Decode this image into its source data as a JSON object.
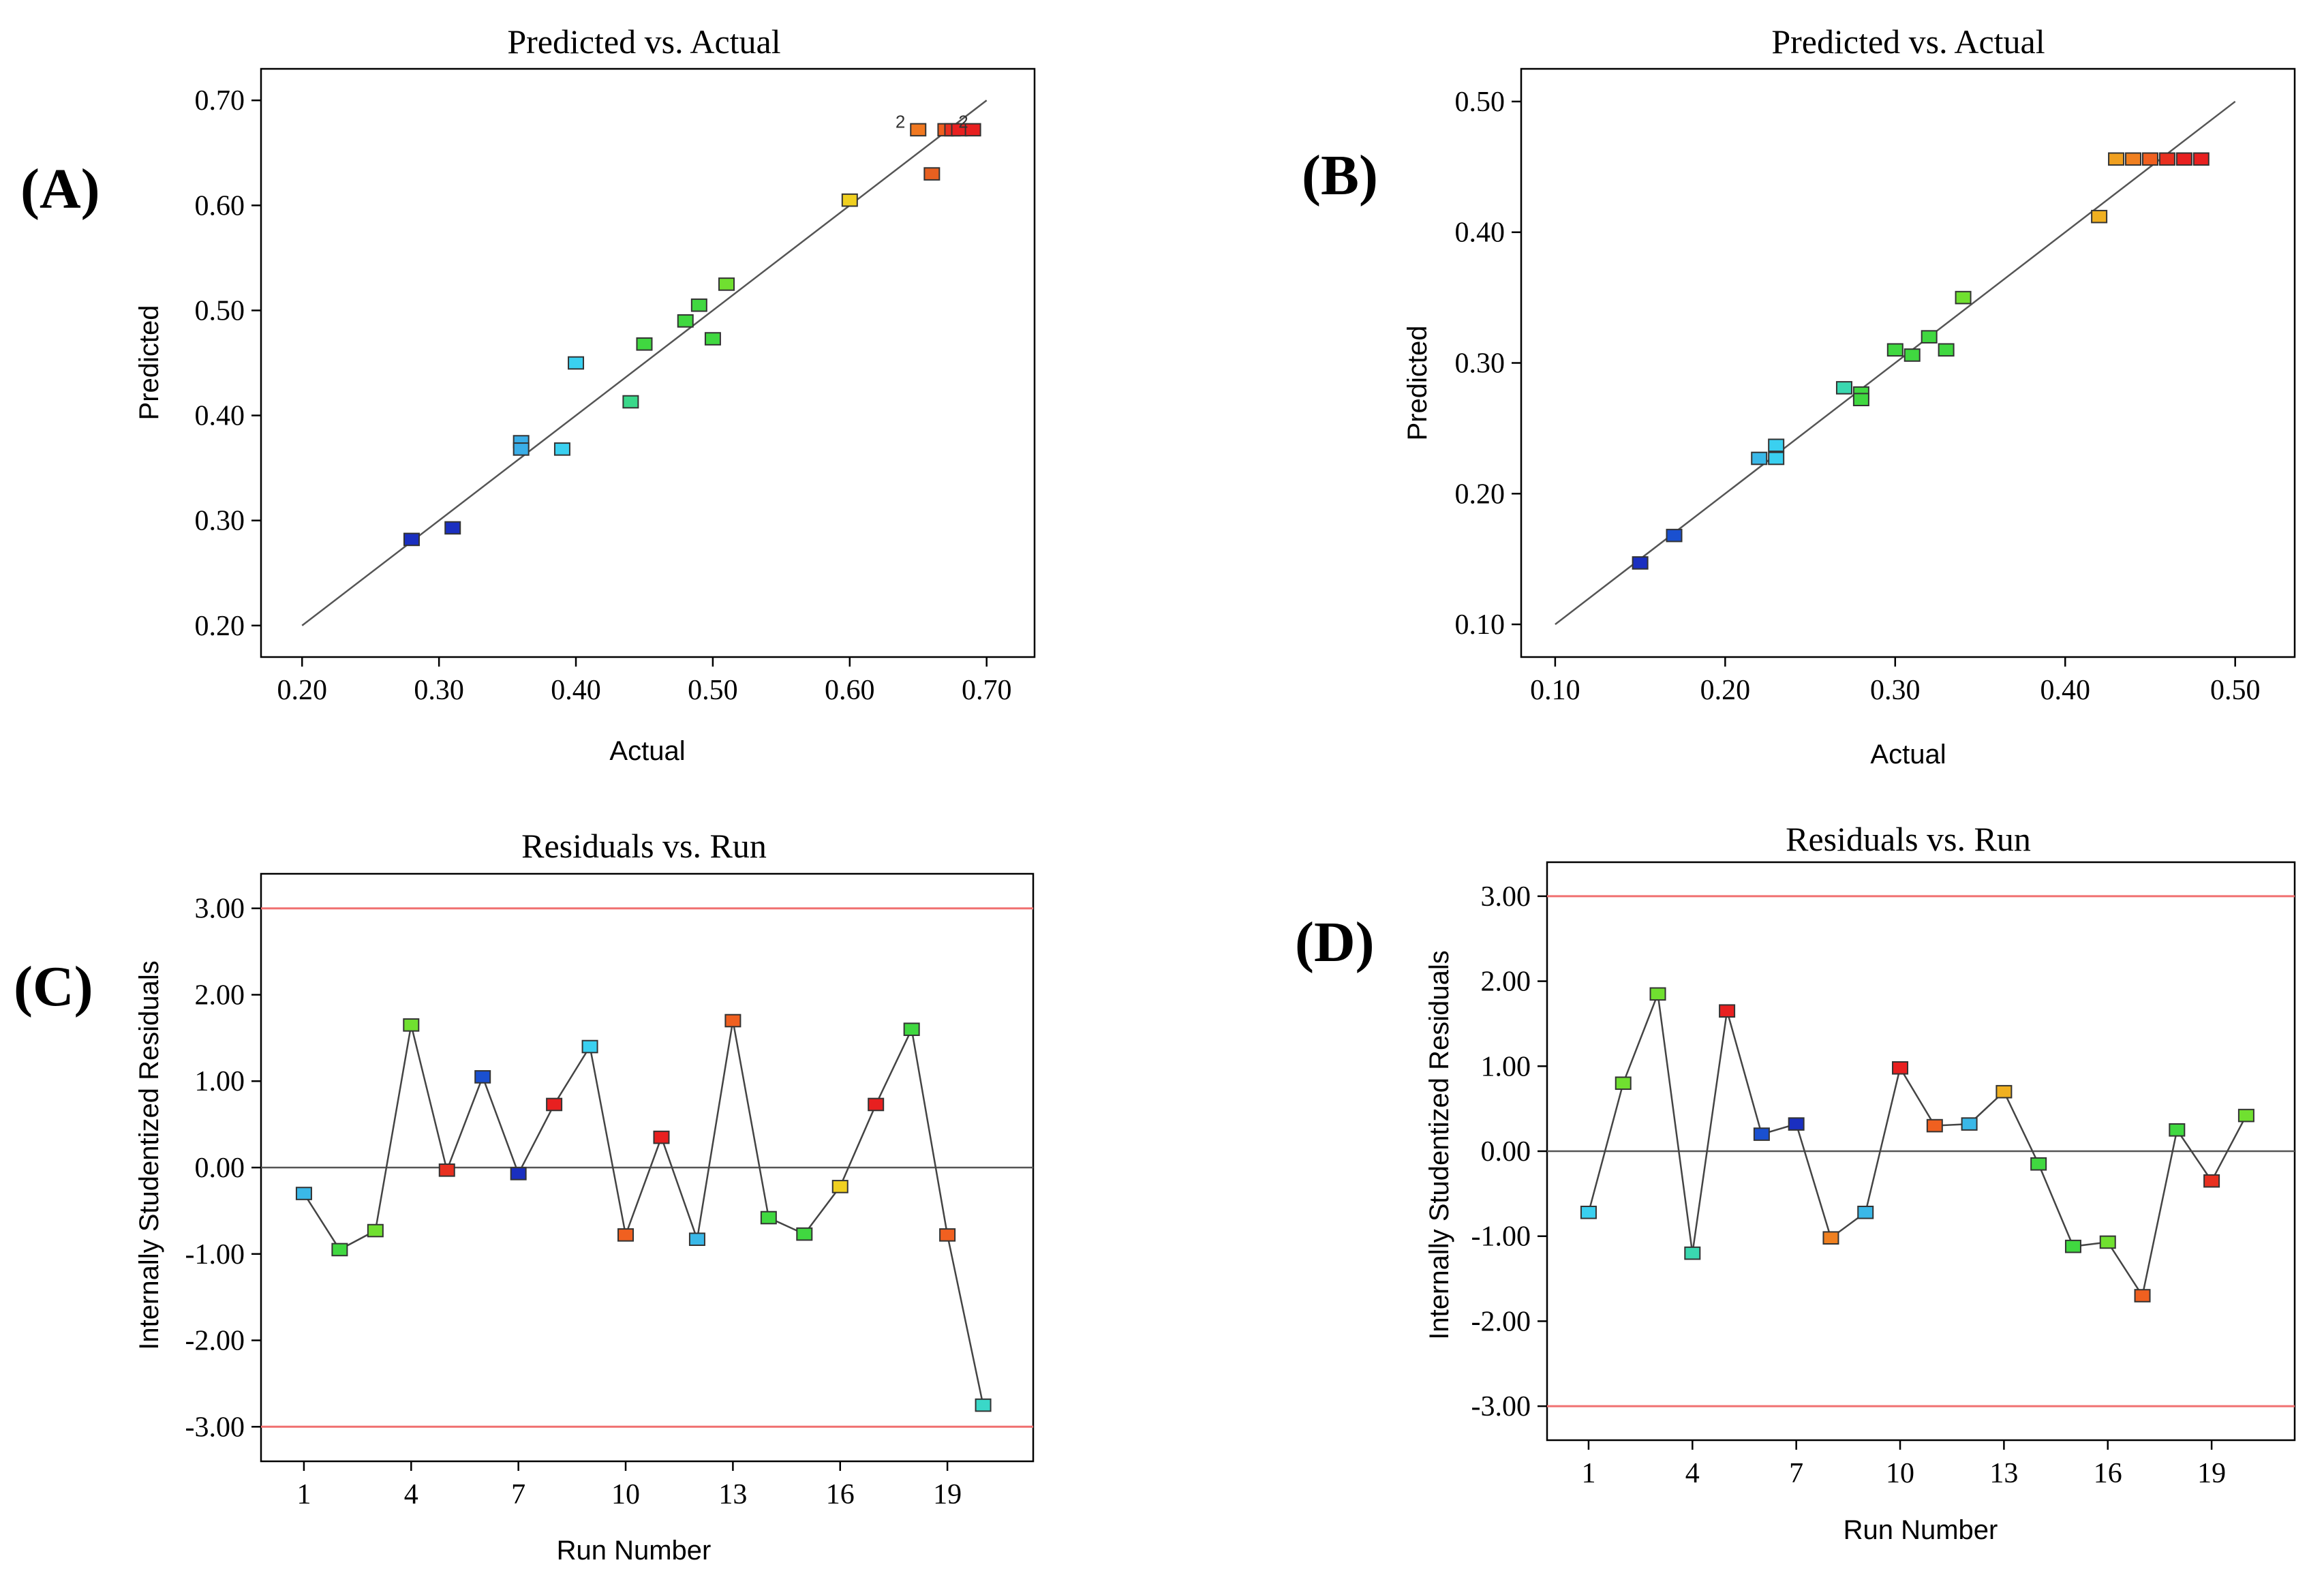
{
  "figure": {
    "panels": [
      {
        "panel_label": "(A)",
        "chart_data": {
          "type": "scatter",
          "title": "Predicted vs. Actual",
          "xlabel": "Actual",
          "ylabel": "Predicted",
          "xlim": [
            0.17,
            0.735
          ],
          "ylim": [
            0.17,
            0.73
          ],
          "xticks": [
            "0.20",
            "0.30",
            "0.40",
            "0.50",
            "0.60",
            "0.70"
          ],
          "yticks": [
            "0.20",
            "0.30",
            "0.40",
            "0.50",
            "0.60",
            "0.70"
          ],
          "xtick_values": [
            0.2,
            0.3,
            0.4,
            0.5,
            0.6,
            0.7
          ],
          "ytick_values": [
            0.2,
            0.3,
            0.4,
            0.5,
            0.6,
            0.7
          ],
          "diagonal": [
            0.2,
            0.7
          ],
          "points": [
            {
              "x": 0.28,
              "y": 0.282,
              "color": "#1a2fc0"
            },
            {
              "x": 0.31,
              "y": 0.293,
              "color": "#1a2fc0"
            },
            {
              "x": 0.36,
              "y": 0.375,
              "color": "#3aaee8"
            },
            {
              "x": 0.36,
              "y": 0.368,
              "color": "#3aaee8"
            },
            {
              "x": 0.39,
              "y": 0.368,
              "color": "#3ad0f0"
            },
            {
              "x": 0.4,
              "y": 0.45,
              "color": "#3ad0f0"
            },
            {
              "x": 0.44,
              "y": 0.413,
              "color": "#3ad88a"
            },
            {
              "x": 0.45,
              "y": 0.468,
              "color": "#40d840"
            },
            {
              "x": 0.48,
              "y": 0.49,
              "color": "#40d840"
            },
            {
              "x": 0.49,
              "y": 0.505,
              "color": "#40d840"
            },
            {
              "x": 0.5,
              "y": 0.473,
              "color": "#40d840"
            },
            {
              "x": 0.51,
              "y": 0.525,
              "color": "#70e030"
            },
            {
              "x": 0.6,
              "y": 0.605,
              "color": "#f0d020"
            },
            {
              "x": 0.65,
              "y": 0.672,
              "color": "#f07820"
            },
            {
              "x": 0.66,
              "y": 0.63,
              "color": "#e86020"
            },
            {
              "x": 0.67,
              "y": 0.672,
              "color": "#f06020"
            },
            {
              "x": 0.675,
              "y": 0.672,
              "color": "#e83020"
            },
            {
              "x": 0.68,
              "y": 0.672,
              "color": "#e82020"
            },
            {
              "x": 0.69,
              "y": 0.672,
              "color": "#e82020"
            }
          ],
          "annotations": [
            {
              "text": "2",
              "x": 0.637,
              "y": 0.674
            },
            {
              "text": "2",
              "x": 0.683,
              "y": 0.674
            }
          ]
        }
      },
      {
        "panel_label": "(B)",
        "chart_data": {
          "type": "scatter",
          "title": "Predicted vs. Actual",
          "xlabel": "Actual",
          "ylabel": "Predicted",
          "xlim": [
            0.08,
            0.535
          ],
          "ylim": [
            0.075,
            0.525
          ],
          "xticks": [
            "0.10",
            "0.20",
            "0.30",
            "0.40",
            "0.50"
          ],
          "yticks": [
            "0.10",
            "0.20",
            "0.30",
            "0.40",
            "0.50"
          ],
          "xtick_values": [
            0.1,
            0.2,
            0.3,
            0.4,
            0.5
          ],
          "ytick_values": [
            0.1,
            0.2,
            0.3,
            0.4,
            0.5
          ],
          "diagonal": [
            0.1,
            0.5
          ],
          "points": [
            {
              "x": 0.15,
              "y": 0.147,
              "color": "#1a2fc0"
            },
            {
              "x": 0.17,
              "y": 0.168,
              "color": "#1a50d0"
            },
            {
              "x": 0.22,
              "y": 0.227,
              "color": "#3ab8e8"
            },
            {
              "x": 0.23,
              "y": 0.227,
              "color": "#3ad0f0"
            },
            {
              "x": 0.23,
              "y": 0.237,
              "color": "#3ad0f0"
            },
            {
              "x": 0.27,
              "y": 0.281,
              "color": "#3ad8b0"
            },
            {
              "x": 0.28,
              "y": 0.277,
              "color": "#40d840"
            },
            {
              "x": 0.28,
              "y": 0.272,
              "color": "#40d840"
            },
            {
              "x": 0.3,
              "y": 0.31,
              "color": "#40d840"
            },
            {
              "x": 0.31,
              "y": 0.306,
              "color": "#40d840"
            },
            {
              "x": 0.32,
              "y": 0.32,
              "color": "#40d840"
            },
            {
              "x": 0.33,
              "y": 0.31,
              "color": "#40d840"
            },
            {
              "x": 0.34,
              "y": 0.35,
              "color": "#70e030"
            },
            {
              "x": 0.42,
              "y": 0.412,
              "color": "#f0b020"
            },
            {
              "x": 0.43,
              "y": 0.456,
              "color": "#f0a020"
            },
            {
              "x": 0.44,
              "y": 0.456,
              "color": "#f08020"
            },
            {
              "x": 0.45,
              "y": 0.456,
              "color": "#f06020"
            },
            {
              "x": 0.46,
              "y": 0.456,
              "color": "#e83020"
            },
            {
              "x": 0.47,
              "y": 0.456,
              "color": "#e82020"
            },
            {
              "x": 0.48,
              "y": 0.456,
              "color": "#e82020"
            }
          ],
          "annotations": []
        }
      },
      {
        "panel_label": "(C)",
        "chart_data": {
          "type": "line",
          "title": "Residuals vs. Run",
          "xlabel": "Run Number",
          "ylabel": "Internally Studentized Residuals",
          "xlim": [
            -0.2,
            21.4
          ],
          "ylim": [
            -3.4,
            3.4
          ],
          "xticks": [
            "1",
            "4",
            "7",
            "10",
            "13",
            "16",
            "19"
          ],
          "yticks": [
            "3.00",
            "2.00",
            "1.00",
            "0.00",
            "-1.00",
            "-2.00",
            "-3.00"
          ],
          "xtick_values": [
            1,
            4,
            7,
            10,
            13,
            16,
            19
          ],
          "ytick_values": [
            3,
            2,
            1,
            0,
            -1,
            -2,
            -3
          ],
          "limit_lines": [
            3.0,
            -3.0
          ],
          "zero_line": 0,
          "x": [
            1,
            2,
            3,
            4,
            5,
            6,
            7,
            8,
            9,
            10,
            11,
            12,
            13,
            14,
            15,
            16,
            17,
            18,
            19,
            20
          ],
          "values": [
            -0.3,
            -0.95,
            -0.73,
            1.65,
            -0.03,
            1.05,
            -0.07,
            0.73,
            1.4,
            -0.78,
            0.35,
            -0.83,
            1.7,
            -0.58,
            -0.77,
            -0.22,
            0.73,
            1.6,
            -0.78,
            -2.75
          ],
          "colors": [
            "#3ab8e8",
            "#40d840",
            "#70e030",
            "#70e030",
            "#e83020",
            "#1a50d0",
            "#1a2fc0",
            "#e82020",
            "#3ad0f0",
            "#f06020",
            "#e82020",
            "#3ab8e8",
            "#f06020",
            "#40d840",
            "#40d840",
            "#f0d020",
            "#e82020",
            "#40d840",
            "#f06020",
            "#3ad8c8"
          ]
        }
      },
      {
        "panel_label": "(D)",
        "chart_data": {
          "type": "line",
          "title": "Residuals vs. Run",
          "xlabel": "Run Number",
          "ylabel": "Internally Studentized Residuals",
          "xlim": [
            -0.2,
            21.4
          ],
          "ylim": [
            -3.4,
            3.4
          ],
          "xticks": [
            "1",
            "4",
            "7",
            "10",
            "13",
            "16",
            "19"
          ],
          "yticks": [
            "3.00",
            "2.00",
            "1.00",
            "0.00",
            "-1.00",
            "-2.00",
            "-3.00"
          ],
          "xtick_values": [
            1,
            4,
            7,
            10,
            13,
            16,
            19
          ],
          "ytick_values": [
            3,
            2,
            1,
            0,
            -1,
            -2,
            -3
          ],
          "limit_lines": [
            3.0,
            -3.0
          ],
          "zero_line": 0,
          "x": [
            1,
            2,
            3,
            4,
            5,
            6,
            7,
            8,
            9,
            10,
            11,
            12,
            13,
            14,
            15,
            16,
            17,
            18,
            19,
            20
          ],
          "values": [
            -0.72,
            0.8,
            1.85,
            -1.2,
            1.65,
            0.2,
            0.32,
            -1.02,
            -0.72,
            0.98,
            0.3,
            0.32,
            0.7,
            -0.15,
            -1.12,
            -1.07,
            -1.7,
            0.25,
            -0.35,
            0.42
          ],
          "colors": [
            "#3ad0f0",
            "#70e030",
            "#70e030",
            "#3ad8b0",
            "#e82020",
            "#1a50d0",
            "#1a2fc0",
            "#f08020",
            "#3ab8e8",
            "#e82020",
            "#f06020",
            "#3ab8e8",
            "#f0b020",
            "#40d840",
            "#40d840",
            "#70e030",
            "#f06020",
            "#40d840",
            "#e83020",
            "#70e030"
          ]
        }
      }
    ]
  }
}
